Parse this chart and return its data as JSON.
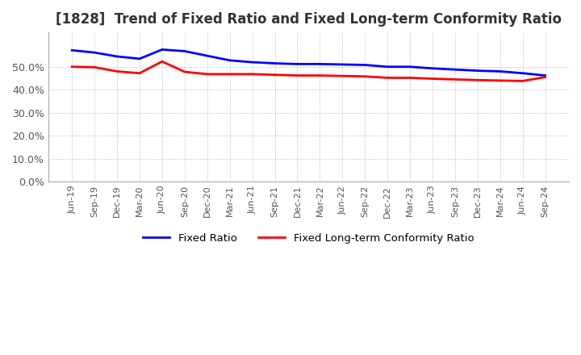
{
  "title": "[1828]  Trend of Fixed Ratio and Fixed Long-term Conformity Ratio",
  "x_labels": [
    "Jun-19",
    "Sep-19",
    "Dec-19",
    "Mar-20",
    "Jun-20",
    "Sep-20",
    "Dec-20",
    "Mar-21",
    "Jun-21",
    "Sep-21",
    "Dec-21",
    "Mar-22",
    "Jun-22",
    "Sep-22",
    "Dec-22",
    "Mar-23",
    "Jun-23",
    "Sep-23",
    "Dec-23",
    "Mar-24",
    "Jun-24",
    "Sep-24"
  ],
  "fixed_ratio": [
    0.572,
    0.562,
    0.545,
    0.535,
    0.575,
    0.568,
    0.548,
    0.528,
    0.52,
    0.515,
    0.512,
    0.512,
    0.51,
    0.508,
    0.5,
    0.5,
    0.493,
    0.488,
    0.483,
    0.48,
    0.472,
    0.462
  ],
  "fixed_lt_ratio": [
    0.5,
    0.498,
    0.48,
    0.472,
    0.523,
    0.478,
    0.468,
    0.468,
    0.468,
    0.465,
    0.462,
    0.462,
    0.46,
    0.458,
    0.452,
    0.452,
    0.448,
    0.445,
    0.442,
    0.44,
    0.438,
    0.455
  ],
  "fixed_ratio_color": "#0000FF",
  "fixed_lt_ratio_color": "#FF0000",
  "ylim": [
    0.0,
    0.65
  ],
  "yticks": [
    0.0,
    0.1,
    0.2,
    0.3,
    0.4,
    0.5
  ],
  "background_color": "#FFFFFF",
  "plot_bg_color": "#FFFFFF",
  "grid_color": "#AAAAAA",
  "title_fontsize": 12,
  "legend_fixed": "Fixed Ratio",
  "legend_lt": "Fixed Long-term Conformity Ratio",
  "line_width": 2.0
}
